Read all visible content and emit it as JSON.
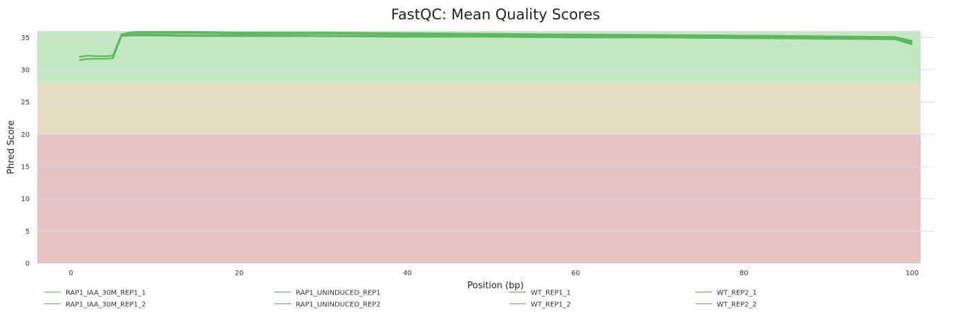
{
  "chart_data": {
    "type": "line",
    "title": "FastQC: Mean Quality Scores",
    "xlabel": "Position (bp)",
    "ylabel": "Phred Score",
    "xlim": [
      -4,
      101
    ],
    "ylim": [
      0,
      36
    ],
    "xticks": [
      0,
      20,
      40,
      60,
      80,
      100
    ],
    "yticks": [
      0,
      5,
      10,
      15,
      20,
      25,
      30,
      35
    ],
    "grid": true,
    "legend_position": "bottom",
    "colors": {
      "line": "#5cb85c",
      "band_good": "#c3e6c3",
      "band_warn": "#e6dcc3",
      "band_fail": "#e6c3c3",
      "grid": "#dddddd"
    },
    "bands": [
      {
        "from": 28,
        "to": 36,
        "color": "#c3e6c3"
      },
      {
        "from": 20,
        "to": 28,
        "color": "#e6dcc3"
      },
      {
        "from": 0,
        "to": 20,
        "color": "#e6c3c3"
      }
    ],
    "x": [
      1,
      2,
      3,
      4,
      5,
      6,
      7,
      8,
      9,
      15,
      20,
      30,
      40,
      50,
      60,
      70,
      80,
      90,
      98,
      100
    ],
    "series": [
      {
        "name": "RAP1_IAA_30M_REP1_1",
        "values": [
          32.0,
          32.2,
          32.1,
          32.1,
          32.2,
          35.5,
          35.8,
          35.9,
          35.9,
          35.9,
          35.8,
          35.8,
          35.7,
          35.6,
          35.5,
          35.4,
          35.3,
          35.2,
          35.1,
          34.5
        ]
      },
      {
        "name": "RAP1_IAA_30M_REP1_2",
        "values": [
          31.5,
          31.7,
          31.7,
          31.7,
          31.8,
          35.3,
          35.4,
          35.3,
          35.3,
          35.2,
          35.2,
          35.2,
          35.1,
          35.1,
          35.0,
          35.0,
          34.9,
          34.8,
          34.8,
          34.0
        ]
      },
      {
        "name": "RAP1_UNINDUCED_REP1",
        "values": [
          32.0,
          32.2,
          32.1,
          32.1,
          32.2,
          35.4,
          35.7,
          35.8,
          35.8,
          35.7,
          35.6,
          35.6,
          35.5,
          35.4,
          35.3,
          35.3,
          35.2,
          35.1,
          35.0,
          34.3
        ]
      },
      {
        "name": "RAP1_UNINDUCED_REP2",
        "values": [
          31.5,
          31.7,
          31.7,
          31.7,
          31.8,
          35.3,
          35.5,
          35.5,
          35.5,
          35.4,
          35.4,
          35.3,
          35.3,
          35.2,
          35.2,
          35.1,
          35.0,
          34.9,
          34.9,
          34.1
        ]
      },
      {
        "name": "WT_REP1_1",
        "values": [
          32.0,
          32.2,
          32.1,
          32.1,
          32.2,
          35.5,
          35.8,
          35.8,
          35.8,
          35.8,
          35.7,
          35.7,
          35.6,
          35.5,
          35.5,
          35.4,
          35.3,
          35.2,
          35.1,
          34.4
        ]
      },
      {
        "name": "WT_REP1_2",
        "values": [
          31.5,
          31.7,
          31.7,
          31.7,
          31.8,
          35.2,
          35.3,
          35.3,
          35.3,
          35.3,
          35.2,
          35.2,
          35.1,
          35.1,
          35.0,
          35.0,
          34.9,
          34.8,
          34.7,
          33.9
        ]
      },
      {
        "name": "WT_REP2_1",
        "values": [
          32.0,
          32.2,
          32.1,
          32.1,
          32.2,
          35.4,
          35.7,
          35.7,
          35.7,
          35.7,
          35.6,
          35.6,
          35.5,
          35.4,
          35.4,
          35.3,
          35.2,
          35.1,
          35.0,
          34.3
        ]
      },
      {
        "name": "WT_REP2_2",
        "values": [
          31.5,
          31.7,
          31.7,
          31.7,
          31.8,
          35.3,
          35.4,
          35.4,
          35.4,
          35.3,
          35.3,
          35.3,
          35.2,
          35.2,
          35.1,
          35.0,
          34.9,
          34.9,
          34.8,
          34.0
        ]
      }
    ]
  }
}
